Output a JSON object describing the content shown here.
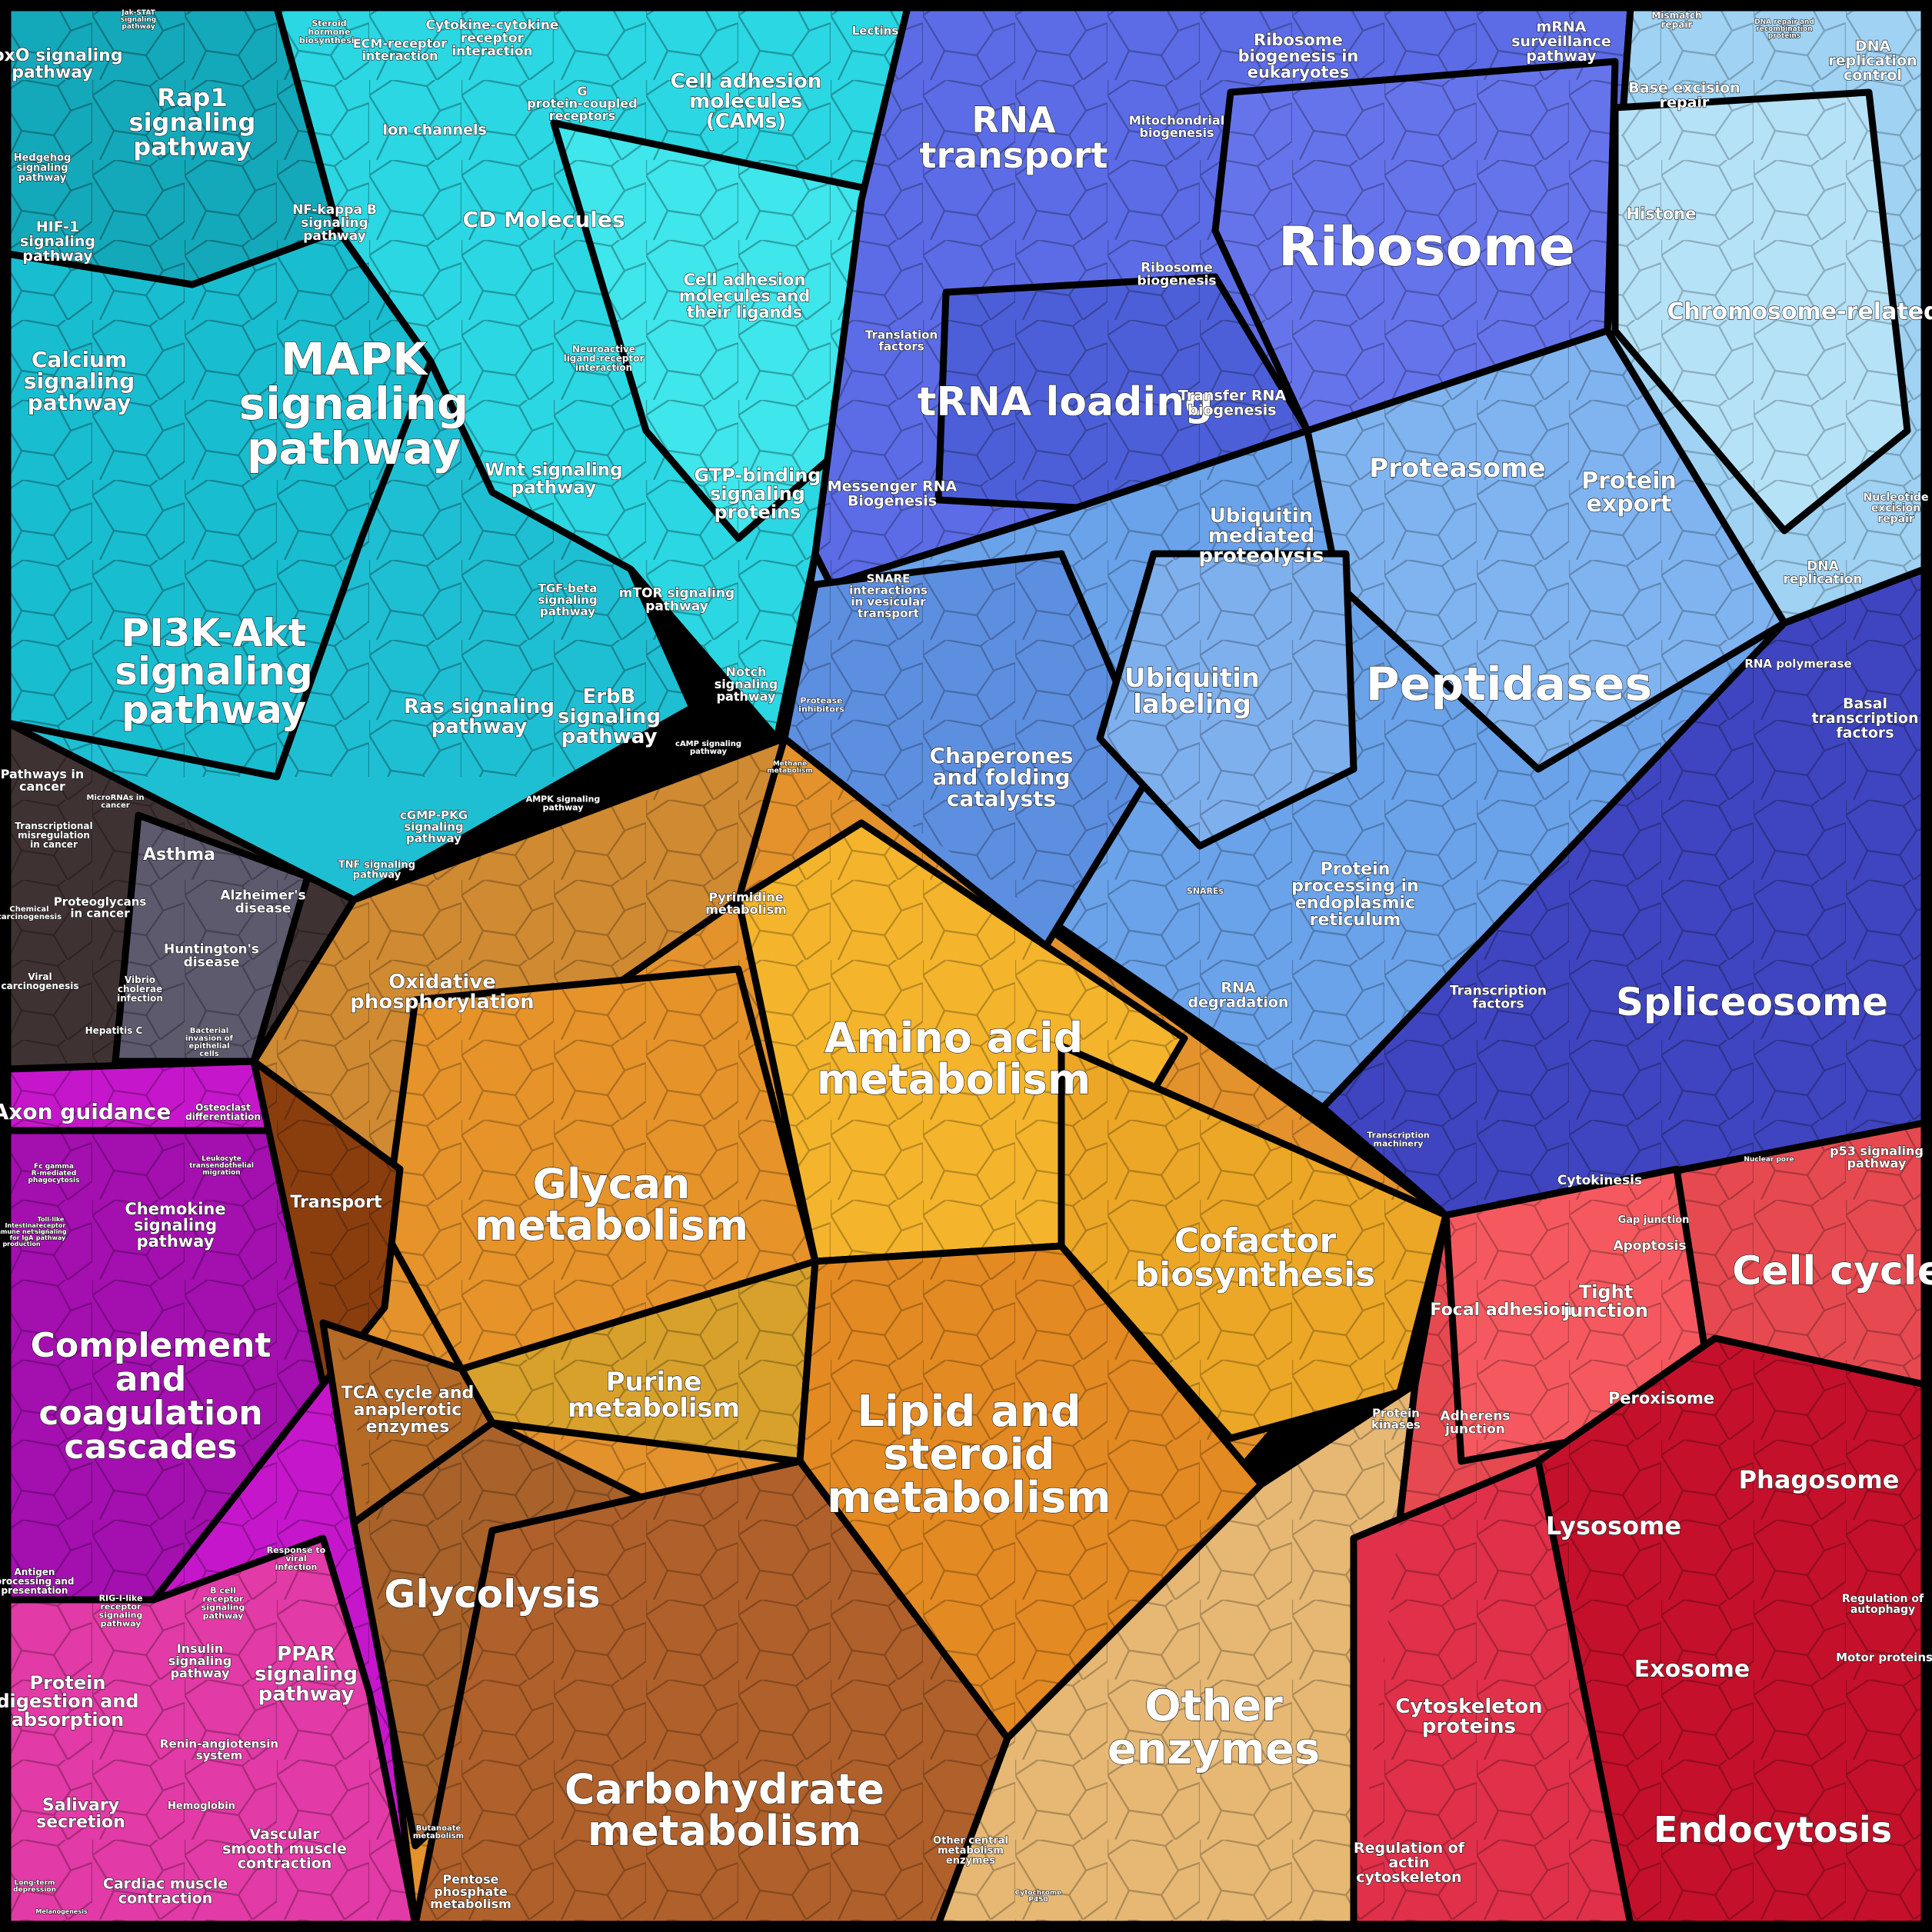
{
  "colors": {
    "signaling": "#2ec7d6",
    "information": "#5f72e6",
    "proteostasis": "#6aa6ec",
    "metabolism": "#f0a82e",
    "cellular": "#e23c44",
    "organismal": "#d21fbd",
    "disease": "#4a3a3a",
    "outline": "#000000"
  },
  "labels": {
    "foxo": "FoxO signaling pathway",
    "jakstat": "Jak-STAT signaling pathway",
    "rap1": "Rap1 signaling pathway",
    "hedgehog": "Hedgehog signaling pathway",
    "hif1": "HIF-1 signaling pathway",
    "nfkb": "NF-kappa B signaling pathway",
    "calcium": "Calcium signaling pathway",
    "mapk": "MAPK signaling pathway",
    "pi3k": "PI3K-Akt signaling pathway",
    "steroid_hormone": "Steroid hormone biosynthesis",
    "ecm": "ECM-receptor interaction",
    "cytokine": "Cytokine-cytokine receptor interaction",
    "gpcr": "G protein-coupled receptors",
    "ion": "Ion channels",
    "cd": "CD Molecules",
    "cams": "Cell adhesion molecules (CAMs)",
    "lectins": "Lectins",
    "cell_adh_ligands": "Cell adhesion molecules and their ligands",
    "neuroactive": "Neuroactive ligand-receptor interaction",
    "wnt": "Wnt signaling pathway",
    "gtp": "GTP-binding signaling proteins",
    "tgf": "TGF-beta signaling pathway",
    "mtor": "mTOR signaling pathway",
    "ras": "Ras signaling pathway",
    "erbb": "ErbB signaling pathway",
    "notch": "Notch signaling pathway",
    "camp": "cAMP signaling pathway",
    "ampk": "AMPK signaling pathway",
    "cgmp": "cGMP-PKG signaling pathway",
    "tnf": "TNF signaling pathway",
    "rna_transport": "RNA transport",
    "ribosome_biogen_euk": "Ribosome biogenesis in eukaryotes",
    "mrna_surv": "mRNA surveillance pathway",
    "mito_biogen": "Mitochondrial biogenesis",
    "ribosome": "Ribosome",
    "ribosome_biogen": "Ribosome biogenesis",
    "translation": "Translation factors",
    "trna": "tRNA loading",
    "transfer_rna": "Transfer RNA biogenesis",
    "messenger_rna": "Messenger RNA Biogenesis",
    "mismatch": "Mismatch repair",
    "dna_repair_recomb": "DNA repair and recombination proteins",
    "dna_rep_control": "DNA replication control",
    "base_excision": "Base excision repair",
    "histone": "Histone",
    "chromosome": "Chromosome-related",
    "nucleotide_excision": "Nucleotide excision repair",
    "dna_replication": "DNA replication",
    "proteasome": "Proteasome",
    "protein_export": "Protein export",
    "ubiq_proteolysis": "Ubiquitin mediated proteolysis",
    "snare_vesicular": "SNARE interactions in vesicular transport",
    "protease_inhib": "Protease inhibitors",
    "ubiq_labeling": "Ubiquitin labeling",
    "peptidases": "Peptidases",
    "chaperones": "Chaperones and folding catalysts",
    "snares": "SNAREs",
    "protein_er": "Protein processing in endoplasmic reticulum",
    "rna_degradation": "RNA degradation",
    "rna_polymerase": "RNA polymerase",
    "basal_tf": "Basal transcription factors",
    "transcription_factors": "Transcription factors",
    "spliceosome": "Spliceosome",
    "transcription_machinery": "Transcription machinery",
    "pathways_cancer": "Pathways in cancer",
    "micrornas": "MicroRNAs in cancer",
    "transcriptional_misreg": "Transcriptional misregulation in cancer",
    "asthma": "Asthma",
    "chemical_carcinogenesis": "Chemical carcinogenesis",
    "proteoglycans": "Proteoglycans in cancer",
    "alzheimers": "Alzheimer's disease",
    "huntingtons": "Huntington's disease",
    "viral_carcinogenesis": "Viral carcinogenesis",
    "vibrio": "Vibrio cholerae infection",
    "hepatitis_c": "Hepatitis C",
    "bacterial_invasion": "Bacterial invasion of epithelial cells",
    "methane": "Methane metabolism",
    "pyrimidine": "Pyrimidine metabolism",
    "oxphos": "Oxidative phosphorylation",
    "amino_acid": "Amino acid metabolism",
    "glycan": "Glycan metabolism",
    "transport": "Transport",
    "cofactor": "Cofactor biosynthesis",
    "purine": "Purine metabolism",
    "lipid": "Lipid and steroid metabolism",
    "tca": "TCA cycle and anaplerotic enzymes",
    "glycolysis": "Glycolysis",
    "carbohydrate": "Carbohydrate metabolism",
    "other_enzymes": "Other enzymes",
    "protein_kinases": "Protein kinases",
    "butanoate": "Butanoate metabolism",
    "pentose": "Pentose phosphate metabolism",
    "other_central": "Other central metabolism enzymes",
    "cytochrome": "Cytochrome P450",
    "axon": "Axon guidance",
    "osteoclast": "Osteoclast differentiation",
    "fc_gamma": "Fc gamma R-mediated phagocytosis",
    "leukocyte": "Leukocyte transendothelial migration",
    "chemokine": "Chemokine signaling pathway",
    "intestinal_iga": "Intestinal immune network for IgA production",
    "toll_like": "Toll-like receptor signaling pathway",
    "complement": "Complement and coagulation cascades",
    "antigen": "Antigen processing and presentation",
    "response_viral": "Response to viral infection",
    "rig_i": "RIG-I-like receptor signaling pathway",
    "b_cell": "B cell receptor signaling pathway",
    "protein_digestion": "Protein digestion and absorption",
    "insulin": "Insulin signaling pathway",
    "ppar": "PPAR signaling pathway",
    "renin": "Renin-angiotensin system",
    "salivary": "Salivary secretion",
    "hemoglobin": "Hemoglobin",
    "vascular": "Vascular smooth muscle contraction",
    "cardiac": "Cardiac muscle contraction",
    "long_term_dep": "Long-term depression",
    "melanogenesis": "Melanogenesis",
    "cytokinesis": "Cytokinesis",
    "nuclear_pore": "Nuclear pore",
    "p53": "p53 signaling pathway",
    "gap": "Gap junction",
    "apoptosis": "Apoptosis",
    "cell_cycle": "Cell cycle",
    "focal": "Focal adhesion",
    "tight": "Tight junction",
    "peroxisome": "Peroxisome",
    "adherens": "Adherens junction",
    "phagosome": "Phagosome",
    "lysosome": "Lysosome",
    "reg_autophagy": "Regulation of autophagy",
    "motor": "Motor proteins",
    "exosome": "Exosome",
    "cytoskeleton": "Cytoskeleton proteins",
    "reg_actin": "Regulation of actin cytoskeleton",
    "endocytosis": "Endocytosis"
  }
}
